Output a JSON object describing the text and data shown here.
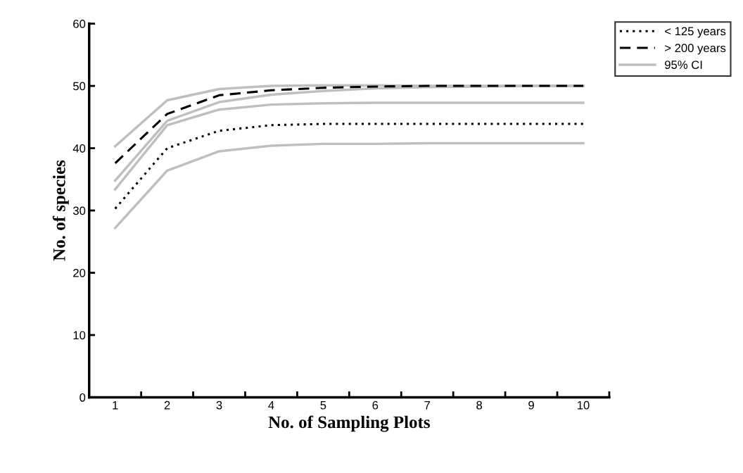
{
  "chart_data": {
    "type": "line",
    "xlabel": "No. of Sampling Plots",
    "ylabel": "No. of species",
    "categories": [
      "1",
      "2",
      "3",
      "4",
      "5",
      "6",
      "7",
      "8",
      "9",
      "10"
    ],
    "ylim": [
      0,
      60
    ],
    "yticks": [
      0,
      10,
      20,
      30,
      40,
      50,
      60
    ],
    "grid": false,
    "legend": "top right",
    "marker": "none",
    "series": [
      {
        "name": "< 125 years",
        "color": "#000000",
        "line_style": "dotted",
        "values": [
          30.3,
          40.0,
          42.8,
          43.7,
          43.9,
          43.9,
          43.9,
          43.9,
          43.9,
          43.9
        ]
      },
      {
        "name": "> 200 years",
        "color": "#000000",
        "line_style": "dashed",
        "values": [
          37.6,
          45.5,
          48.5,
          49.3,
          49.7,
          49.9,
          50.0,
          50.0,
          50.0,
          50.0
        ]
      },
      {
        "name": "95% CI",
        "color": "#bfbfbf",
        "line_style": "solid",
        "values": [
          27.2,
          36.4,
          39.5,
          40.4,
          40.7,
          40.7,
          40.8,
          40.8,
          40.8,
          40.8
        ]
      },
      {
        "color": "#bfbfbf",
        "line_style": "solid",
        "values": [
          33.4,
          43.7,
          46.2,
          47.0,
          47.2,
          47.3,
          47.3,
          47.3,
          47.3,
          47.3
        ]
      },
      {
        "color": "#bfbfbf",
        "line_style": "solid",
        "values": [
          34.8,
          44.4,
          47.4,
          48.6,
          49.2,
          49.6,
          49.8,
          49.9,
          50.0,
          50.0
        ]
      },
      {
        "color": "#bfbfbf",
        "line_style": "solid",
        "values": [
          40.3,
          47.7,
          49.5,
          50.0,
          50.1,
          50.1,
          50.0,
          50.0,
          50.0,
          50.0
        ]
      }
    ]
  }
}
